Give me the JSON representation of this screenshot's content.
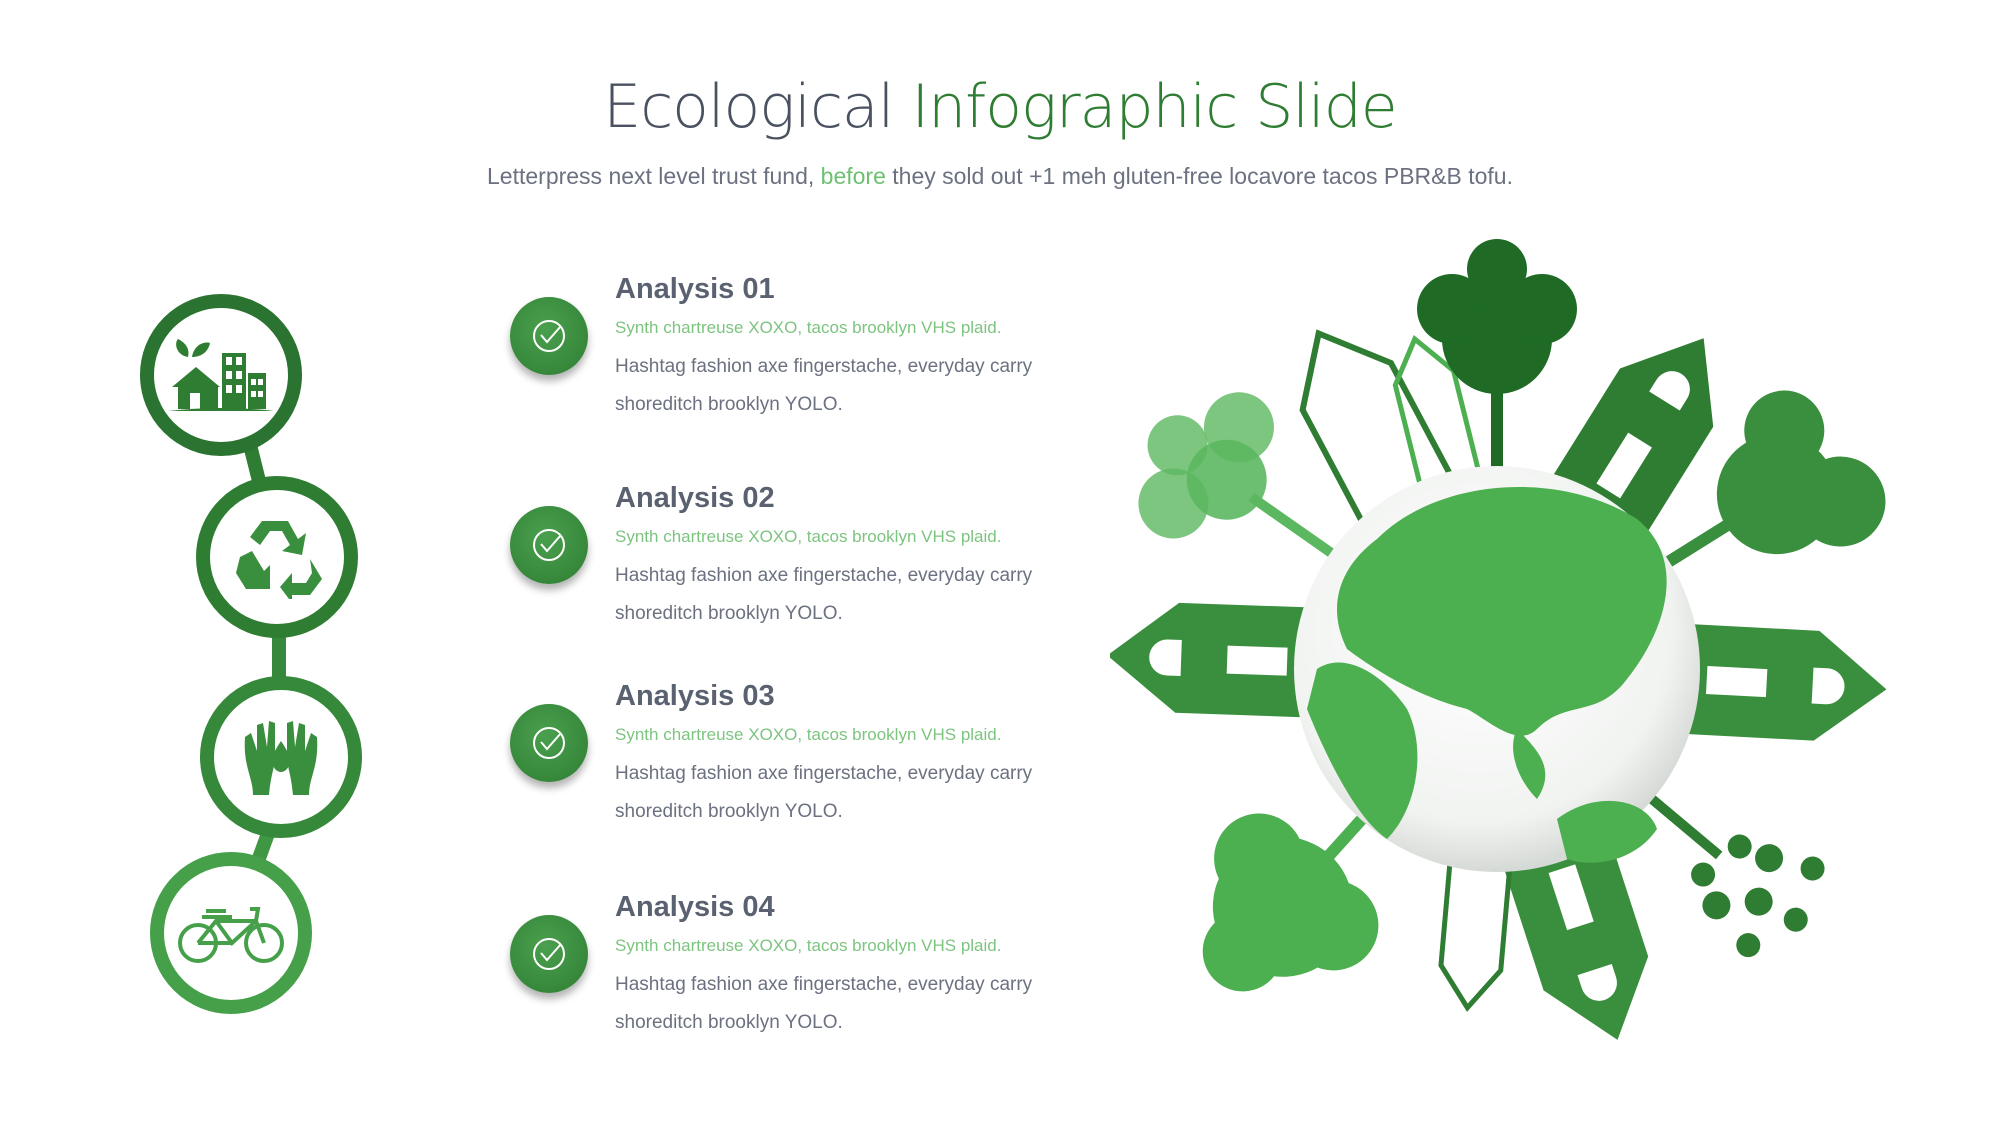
{
  "header": {
    "title_part1": "Ecological ",
    "title_part2": "Infographic Slide",
    "subtitle_part1": "Letterpress next level trust fund, ",
    "subtitle_highlight": "before",
    "subtitle_part2": " they sold out +1 meh gluten-free locavore tacos PBR&B tofu."
  },
  "timeline_icons": [
    "eco-house-buildings-icon",
    "recycle-icon",
    "hands-water-drop-icon",
    "bicycle-icon"
  ],
  "items": [
    {
      "title": "Analysis 01",
      "tagline": "Synth chartreuse XOXO, tacos brooklyn VHS plaid.",
      "body": "Hashtag fashion axe fingerstache, everyday carry shoreditch brooklyn YOLO."
    },
    {
      "title": "Analysis 02",
      "tagline": "Synth chartreuse XOXO, tacos brooklyn VHS plaid.",
      "body": "Hashtag fashion axe fingerstache, everyday carry shoreditch brooklyn YOLO."
    },
    {
      "title": "Analysis 03",
      "tagline": "Synth chartreuse XOXO, tacos brooklyn VHS plaid.",
      "body": "Hashtag fashion axe fingerstache, everyday carry shoreditch brooklyn YOLO."
    },
    {
      "title": "Analysis 04",
      "tagline": "Synth chartreuse XOXO, tacos brooklyn VHS plaid.",
      "body": "Hashtag fashion axe fingerstache, everyday carry shoreditch brooklyn YOLO."
    }
  ],
  "colors": {
    "dark_green": "#2f7d32",
    "green": "#4caf50",
    "light_green": "#7cc47f",
    "text": "#5a6170"
  }
}
